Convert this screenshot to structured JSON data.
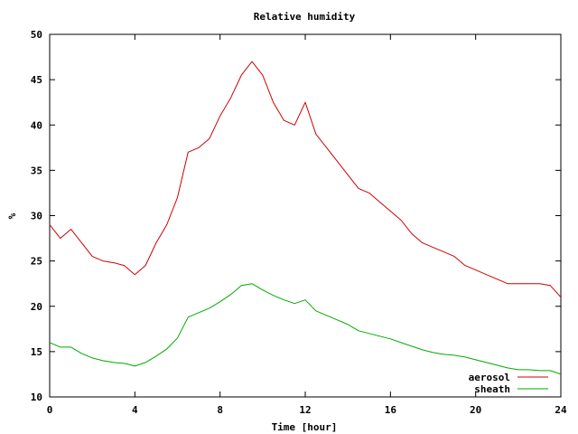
{
  "chart_data": {
    "type": "line",
    "title": "Relative humidity",
    "xlabel": "Time [hour]",
    "ylabel": "%",
    "xlim": [
      0,
      24
    ],
    "ylim": [
      10,
      50
    ],
    "xticks": [
      0,
      4,
      8,
      12,
      16,
      20,
      24
    ],
    "yticks": [
      10,
      15,
      20,
      25,
      30,
      35,
      40,
      45,
      50
    ],
    "grid": false,
    "legend_position": "bottom-right",
    "series": [
      {
        "name": "aerosol",
        "color": "#cc0000",
        "x": [
          0,
          0.5,
          1,
          1.5,
          2,
          2.5,
          3,
          3.5,
          4,
          4.5,
          5,
          5.5,
          6,
          6.5,
          7,
          7.5,
          8,
          8.5,
          9,
          9.5,
          10,
          10.5,
          11,
          11.5,
          12,
          12.5,
          13,
          13.5,
          14,
          14.5,
          15,
          15.5,
          16,
          16.5,
          17,
          17.5,
          18,
          18.5,
          19,
          19.5,
          20,
          20.5,
          21,
          21.5,
          22,
          22.5,
          23,
          23.5,
          24
        ],
        "values": [
          29,
          27.5,
          28.5,
          27,
          25.5,
          25,
          24.8,
          24.5,
          23.5,
          24.5,
          27,
          29,
          32,
          37,
          37.5,
          38.5,
          41,
          43,
          45.5,
          47,
          45.5,
          42.5,
          40.5,
          40,
          42.5,
          39,
          37.5,
          36,
          34.5,
          33,
          32.5,
          31.5,
          30.5,
          29.5,
          28,
          27,
          26.5,
          26,
          25.5,
          24.5,
          24,
          23.5,
          23,
          22.5,
          22.5,
          22.5,
          22.5,
          22.3,
          21
        ]
      },
      {
        "name": "sheath",
        "color": "#00aa00",
        "x": [
          0,
          0.5,
          1,
          1.5,
          2,
          2.5,
          3,
          3.5,
          4,
          4.5,
          5,
          5.5,
          6,
          6.5,
          7,
          7.5,
          8,
          8.5,
          9,
          9.5,
          10,
          10.5,
          11,
          11.5,
          12,
          12.5,
          13,
          13.5,
          14,
          14.5,
          15,
          15.5,
          16,
          16.5,
          17,
          17.5,
          18,
          18.5,
          19,
          19.5,
          20,
          20.5,
          21,
          21.5,
          22,
          22.5,
          23,
          23.5,
          24
        ],
        "values": [
          16,
          15.5,
          15.5,
          14.8,
          14.3,
          14,
          13.8,
          13.7,
          13.4,
          13.8,
          14.5,
          15.3,
          16.5,
          18.8,
          19.3,
          19.8,
          20.5,
          21.3,
          22.3,
          22.5,
          21.8,
          21.2,
          20.7,
          20.3,
          20.7,
          19.5,
          19,
          18.5,
          18,
          17.3,
          17,
          16.7,
          16.4,
          16,
          15.6,
          15.2,
          14.9,
          14.7,
          14.6,
          14.4,
          14.1,
          13.8,
          13.5,
          13.2,
          13,
          13,
          12.9,
          12.9,
          12.5
        ]
      }
    ]
  }
}
